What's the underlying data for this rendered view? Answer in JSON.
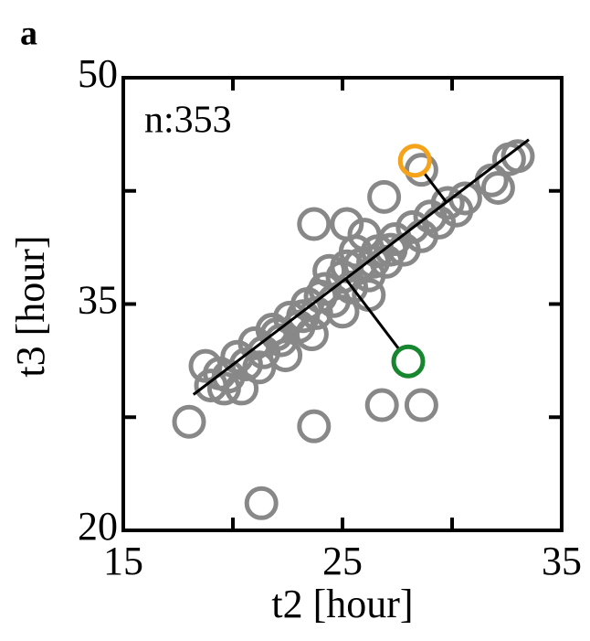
{
  "chart_data": {
    "type": "scatter",
    "panel_label": "a",
    "annotation": "n:353",
    "xlabel": "t2 [hour]",
    "ylabel": "t3 [hour]",
    "xlim": [
      15,
      35
    ],
    "ylim": [
      20,
      50
    ],
    "xticks": [
      15,
      25,
      35
    ],
    "yticks": [
      20,
      35,
      50
    ],
    "xminorticks": [
      20,
      30
    ],
    "yminorticks": [
      27.5,
      42.5
    ],
    "color": "#888888",
    "x": [
      19.0,
      19.4,
      19.8,
      20.2,
      20.6,
      21.0,
      21.4,
      21.8,
      22.2,
      22.6,
      23.0,
      23.4,
      23.8,
      24.2,
      24.6,
      25.0,
      25.4,
      25.8,
      26.2,
      26.6,
      27.0,
      27.4,
      27.8,
      28.2,
      28.6,
      29.0,
      29.4,
      29.8,
      30.2,
      30.6,
      24.0,
      25.2,
      26.4,
      22.0,
      23.2,
      27.2,
      25.6,
      24.4,
      26.0,
      21.2,
      22.4,
      23.6,
      25.0,
      26.2,
      18.0,
      23.7,
      21.3,
      26.8,
      28.6,
      33.0,
      32.6,
      31.8,
      23.7,
      25.2,
      26.9,
      28.6,
      32.1,
      18.75,
      19.6,
      20.4
    ],
    "y": [
      29.6,
      30.4,
      30.2,
      31.5,
      31.0,
      32.4,
      31.8,
      33.3,
      32.6,
      34.1,
      33.5,
      35.0,
      34.4,
      36.0,
      35.2,
      36.8,
      36.1,
      37.6,
      36.9,
      38.5,
      37.8,
      39.3,
      38.6,
      40.1,
      39.5,
      40.8,
      40.4,
      41.7,
      41.2,
      42.0,
      35.5,
      37.5,
      37.8,
      33.0,
      34.2,
      38.6,
      38.5,
      37.2,
      39.6,
      30.8,
      31.6,
      33.0,
      34.5,
      35.6,
      27.2,
      26.9,
      21.8,
      28.3,
      28.3,
      44.8,
      44.6,
      43.2,
      40.3,
      40.3,
      42.1,
      43.9,
      42.7,
      30.9,
      29.4,
      29.4
    ],
    "fit_line": {
      "x": [
        18.2,
        33.5
      ],
      "y": [
        29.0,
        45.9
      ],
      "color": "#000000"
    },
    "highlights": [
      {
        "x": 28.3,
        "y": 44.5,
        "color": "#f5a31b"
      },
      {
        "x": 28.0,
        "y": 31.2,
        "color": "#17862f"
      }
    ]
  }
}
